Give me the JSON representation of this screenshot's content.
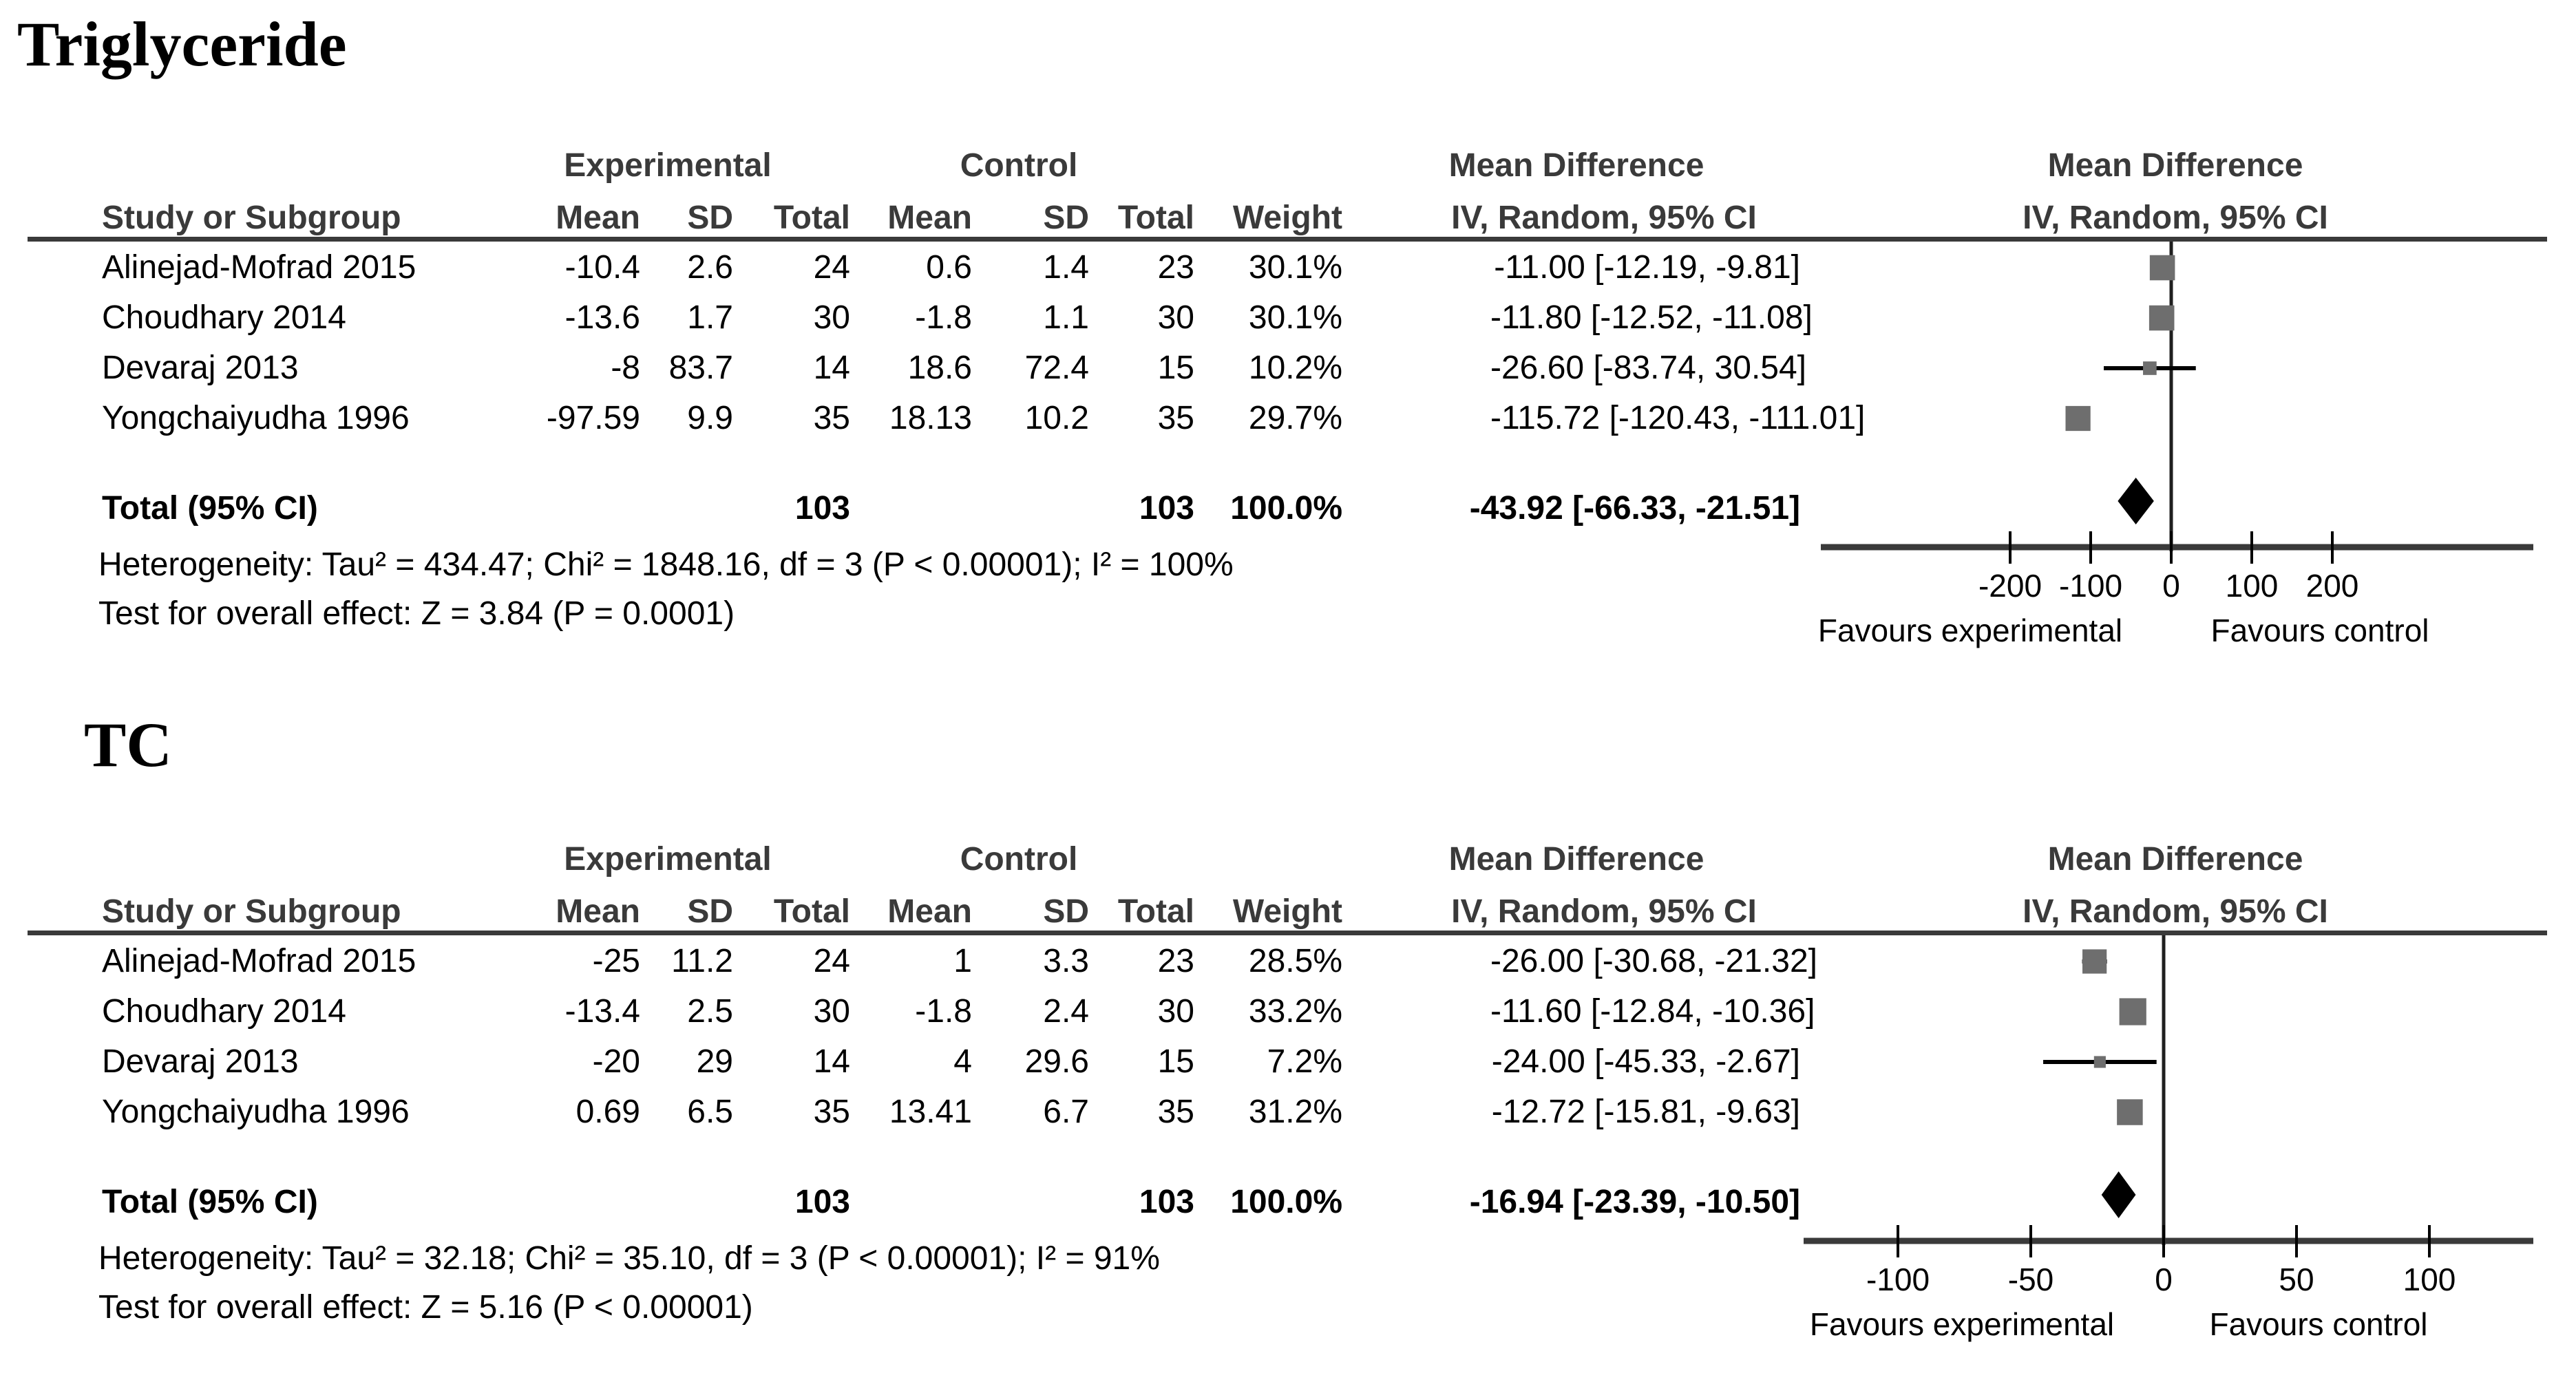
{
  "accent_colors": {
    "square": "#6e6e6e",
    "diamond": "#000000",
    "rule": "#3a3a3a"
  },
  "panels": [
    {
      "title": "Triglyceride",
      "group_headers": {
        "experimental": "Experimental",
        "control": "Control",
        "md_text": "Mean Difference",
        "md_plot": "Mean Difference"
      },
      "column_headers": {
        "study": "Study or Subgroup",
        "e_mean": "Mean",
        "e_sd": "SD",
        "e_total": "Total",
        "c_mean": "Mean",
        "c_sd": "SD",
        "c_total": "Total",
        "weight": "Weight",
        "iv_text": "IV, Random, 95% CI",
        "iv_plot": "IV, Random, 95% CI"
      },
      "rows": [
        {
          "study": "Alinejad-Mofrad 2015",
          "e_mean": "-10.4",
          "e_sd": "2.6",
          "e_total": "24",
          "c_mean": "0.6",
          "c_sd": "1.4",
          "c_total": "23",
          "weight": "30.1%",
          "ci_text": "-11.00 [-12.19, -9.81]",
          "md": -11.0,
          "ci_low": -12.19,
          "ci_high": -9.81,
          "weight_val": 30.1
        },
        {
          "study": "Choudhary 2014",
          "e_mean": "-13.6",
          "e_sd": "1.7",
          "e_total": "30",
          "c_mean": "-1.8",
          "c_sd": "1.1",
          "c_total": "30",
          "weight": "30.1%",
          "ci_text": "-11.80 [-12.52, -11.08]",
          "md": -11.8,
          "ci_low": -12.52,
          "ci_high": -11.08,
          "weight_val": 30.1
        },
        {
          "study": "Devaraj 2013",
          "e_mean": "-8",
          "e_sd": "83.7",
          "e_total": "14",
          "c_mean": "18.6",
          "c_sd": "72.4",
          "c_total": "15",
          "weight": "10.2%",
          "ci_text": "-26.60 [-83.74, 30.54]",
          "md": -26.6,
          "ci_low": -83.74,
          "ci_high": 30.54,
          "weight_val": 10.2
        },
        {
          "study": "Yongchaiyudha 1996",
          "e_mean": "-97.59",
          "e_sd": "9.9",
          "e_total": "35",
          "c_mean": "18.13",
          "c_sd": "10.2",
          "c_total": "35",
          "weight": "29.7%",
          "ci_text": "-115.72 [-120.43, -111.01]",
          "md": -115.72,
          "ci_low": -120.43,
          "ci_high": -111.01,
          "weight_val": 29.7
        }
      ],
      "total": {
        "label": "Total (95% CI)",
        "e_total": "103",
        "c_total": "103",
        "weight": "100.0%",
        "ci_text": "-43.92 [-66.33, -21.51]",
        "md": -43.92,
        "ci_low": -66.33,
        "ci_high": -21.51
      },
      "heterogeneity": "Heterogeneity: Tau² = 434.47; Chi² = 1848.16, df = 3 (P < 0.00001); I² = 100%",
      "overall_effect": "Test for overall effect: Z = 3.84 (P = 0.0001)",
      "axis": {
        "ticks": [
          "-200",
          "-100",
          "0",
          "100",
          "200"
        ],
        "tick_values": [
          -200,
          -100,
          0,
          100,
          200
        ],
        "favours_left": "Favours experimental",
        "favours_right": "Favours control"
      }
    },
    {
      "title": "TC",
      "group_headers": {
        "experimental": "Experimental",
        "control": "Control",
        "md_text": "Mean Difference",
        "md_plot": "Mean Difference"
      },
      "column_headers": {
        "study": "Study or Subgroup",
        "e_mean": "Mean",
        "e_sd": "SD",
        "e_total": "Total",
        "c_mean": "Mean",
        "c_sd": "SD",
        "c_total": "Total",
        "weight": "Weight",
        "iv_text": "IV, Random, 95% CI",
        "iv_plot": "IV, Random, 95% CI"
      },
      "rows": [
        {
          "study": "Alinejad-Mofrad 2015",
          "e_mean": "-25",
          "e_sd": "11.2",
          "e_total": "24",
          "c_mean": "1",
          "c_sd": "3.3",
          "c_total": "23",
          "weight": "28.5%",
          "ci_text": "-26.00 [-30.68, -21.32]",
          "md": -26.0,
          "ci_low": -30.68,
          "ci_high": -21.32,
          "weight_val": 28.5
        },
        {
          "study": "Choudhary 2014",
          "e_mean": "-13.4",
          "e_sd": "2.5",
          "e_total": "30",
          "c_mean": "-1.8",
          "c_sd": "2.4",
          "c_total": "30",
          "weight": "33.2%",
          "ci_text": "-11.60 [-12.84, -10.36]",
          "md": -11.6,
          "ci_low": -12.84,
          "ci_high": -10.36,
          "weight_val": 33.2
        },
        {
          "study": "Devaraj 2013",
          "e_mean": "-20",
          "e_sd": "29",
          "e_total": "14",
          "c_mean": "4",
          "c_sd": "29.6",
          "c_total": "15",
          "weight": "7.2%",
          "ci_text": "-24.00 [-45.33, -2.67]",
          "md": -24.0,
          "ci_low": -45.33,
          "ci_high": -2.67,
          "weight_val": 7.2
        },
        {
          "study": "Yongchaiyudha 1996",
          "e_mean": "0.69",
          "e_sd": "6.5",
          "e_total": "35",
          "c_mean": "13.41",
          "c_sd": "6.7",
          "c_total": "35",
          "weight": "31.2%",
          "ci_text": "-12.72 [-15.81, -9.63]",
          "md": -12.72,
          "ci_low": -15.81,
          "ci_high": -9.63,
          "weight_val": 31.2
        }
      ],
      "total": {
        "label": "Total (95% CI)",
        "e_total": "103",
        "c_total": "103",
        "weight": "100.0%",
        "ci_text": "-16.94 [-23.39, -10.50]",
        "md": -16.94,
        "ci_low": -23.39,
        "ci_high": -10.5
      },
      "heterogeneity": "Heterogeneity: Tau² = 32.18; Chi² = 35.10, df = 3 (P < 0.00001); I² = 91%",
      "overall_effect": "Test for overall effect: Z = 5.16 (P < 0.00001)",
      "axis": {
        "ticks": [
          "-100",
          "-50",
          "0",
          "50",
          "100"
        ],
        "tick_values": [
          -100,
          -50,
          0,
          50,
          100
        ],
        "favours_left": "Favours experimental",
        "favours_right": "Favours control"
      }
    }
  ],
  "chart_data": [
    {
      "type": "scatter",
      "subtype": "forest-plot",
      "title": "Triglyceride",
      "effect_measure": "Mean Difference",
      "method": "IV, Random, 95% CI",
      "categories": [
        "Alinejad-Mofrad 2015",
        "Choudhary 2014",
        "Devaraj 2013",
        "Yongchaiyudha 1996"
      ],
      "series": [
        {
          "name": "Mean Difference",
          "values": [
            -11.0,
            -11.8,
            -26.6,
            -115.72
          ]
        },
        {
          "name": "CI lower",
          "values": [
            -12.19,
            -12.52,
            -83.74,
            -120.43
          ]
        },
        {
          "name": "CI upper",
          "values": [
            -9.81,
            -11.08,
            30.54,
            -111.01
          ]
        },
        {
          "name": "Weight %",
          "values": [
            30.1,
            30.1,
            10.2,
            29.7
          ]
        }
      ],
      "total": {
        "md": -43.92,
        "ci_low": -66.33,
        "ci_high": -21.51,
        "weight_pct": 100.0
      },
      "heterogeneity": {
        "tau2": 434.47,
        "chi2": 1848.16,
        "df": 3,
        "p": "< 0.00001",
        "i2_pct": 100
      },
      "overall_effect": {
        "z": 3.84,
        "p": "= 0.0001"
      },
      "xlim": [
        -440,
        450
      ],
      "x_ticks": [
        -200,
        -100,
        0,
        100,
        200
      ],
      "xlabel_left": "Favours experimental",
      "xlabel_right": "Favours control",
      "grid": false,
      "legend": false
    },
    {
      "type": "scatter",
      "subtype": "forest-plot",
      "title": "TC",
      "effect_measure": "Mean Difference",
      "method": "IV, Random, 95% CI",
      "categories": [
        "Alinejad-Mofrad 2015",
        "Choudhary 2014",
        "Devaraj 2013",
        "Yongchaiyudha 1996"
      ],
      "series": [
        {
          "name": "Mean Difference",
          "values": [
            -26.0,
            -11.6,
            -24.0,
            -12.72
          ]
        },
        {
          "name": "CI lower",
          "values": [
            -30.68,
            -12.84,
            -45.33,
            -15.81
          ]
        },
        {
          "name": "CI upper",
          "values": [
            -21.32,
            -10.36,
            -2.67,
            -9.63
          ]
        },
        {
          "name": "Weight %",
          "values": [
            28.5,
            33.2,
            7.2,
            31.2
          ]
        }
      ],
      "total": {
        "md": -16.94,
        "ci_low": -23.39,
        "ci_high": -10.5,
        "weight_pct": 100.0
      },
      "heterogeneity": {
        "tau2": 32.18,
        "chi2": 35.1,
        "df": 3,
        "p": "< 0.00001",
        "i2_pct": 91
      },
      "overall_effect": {
        "z": 5.16,
        "p": "< 0.00001"
      },
      "xlim": [
        -136,
        140
      ],
      "x_ticks": [
        -100,
        -50,
        0,
        50,
        100
      ],
      "xlabel_left": "Favours experimental",
      "xlabel_right": "Favours control",
      "grid": false,
      "legend": false
    }
  ]
}
